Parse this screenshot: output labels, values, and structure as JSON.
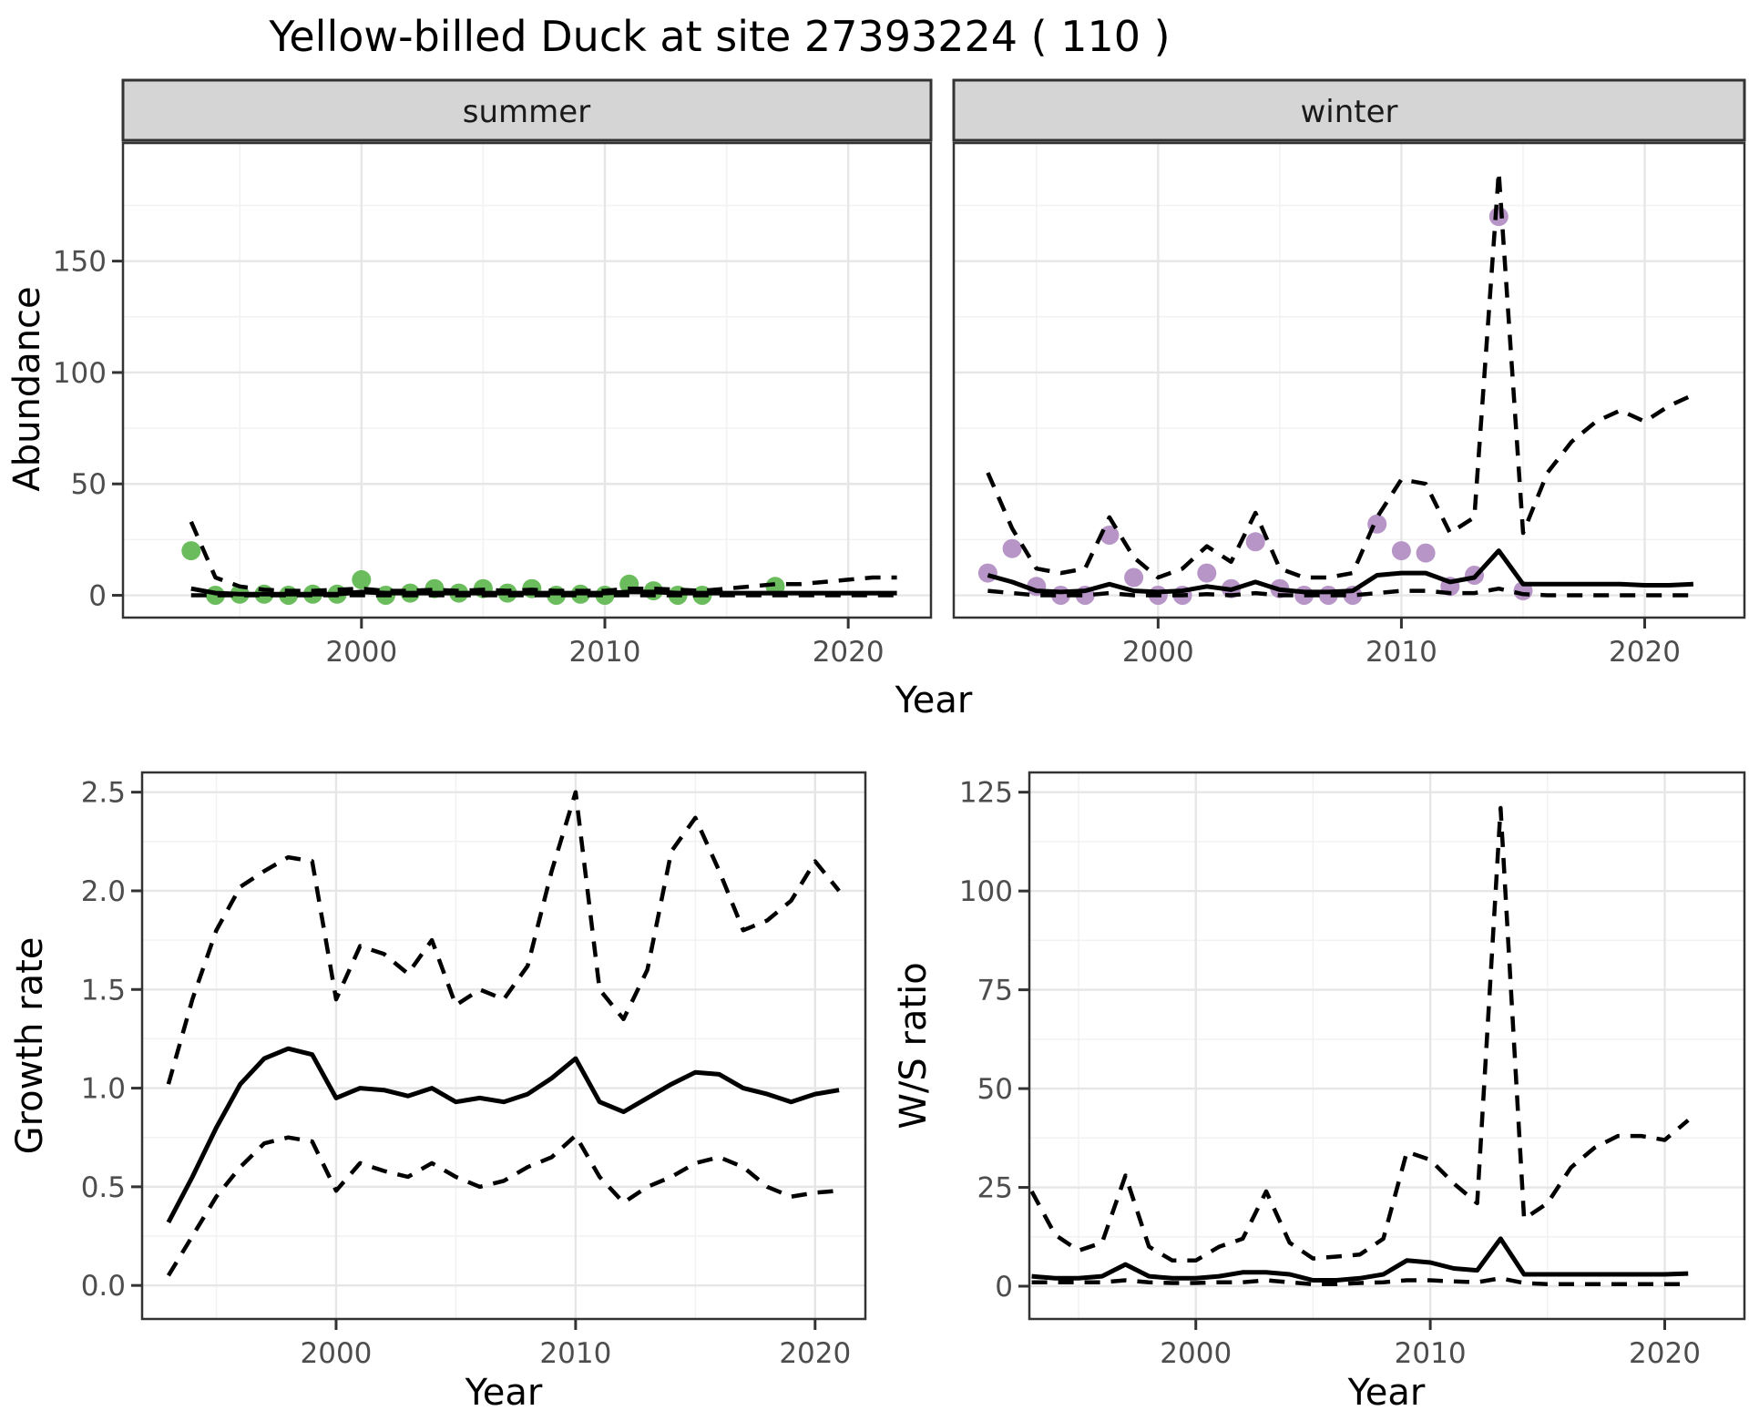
{
  "title": "Yellow-billed Duck at site 27393224 ( 110 )",
  "facets": {
    "summer": "summer",
    "winter": "winter"
  },
  "axes": {
    "abundance_label": "Abundance",
    "year_label": "Year",
    "growth_label": "Growth rate",
    "ws_label": "W/S ratio"
  },
  "colors": {
    "summer_point": "#6abc5c",
    "winter_point": "#b795c7",
    "line": "#000000",
    "strip_bg": "#d5d5d5",
    "panel_border": "#333333",
    "grid_major": "#e6e6e6",
    "grid_minor": "#f2f2f2",
    "tick_text": "#4d4d4d"
  },
  "chart_data": [
    {
      "id": "abundance-summer",
      "type": "line",
      "facet_label": "summer",
      "xlabel": "Year",
      "ylabel": "Abundance",
      "xlim": [
        1990.2,
        2023.4
      ],
      "ylim": [
        -10,
        203
      ],
      "x_ticks": [
        2000,
        2010,
        2020
      ],
      "x_tick_labels": [
        "2000",
        "2010",
        "2020"
      ],
      "y_ticks": [
        0,
        50,
        100,
        150
      ],
      "y_tick_labels": [
        "0",
        "50",
        "100",
        "150"
      ],
      "line_years": [
        1993,
        1994,
        1995,
        1996,
        1997,
        1998,
        1999,
        2000,
        2001,
        2002,
        2003,
        2004,
        2005,
        2006,
        2007,
        2008,
        2009,
        2010,
        2011,
        2012,
        2013,
        2014,
        2015,
        2016,
        2017,
        2018,
        2019,
        2020,
        2021,
        2022
      ],
      "series": [
        {
          "name": "upper-ci",
          "style": "dashed",
          "values": [
            33,
            8,
            4,
            2.5,
            2,
            2,
            2.5,
            3,
            2,
            2,
            2.5,
            2,
            2.5,
            2,
            2.5,
            2,
            2,
            2,
            3,
            3,
            2.5,
            2,
            3,
            4,
            5,
            5,
            6,
            7,
            8,
            8
          ]
        },
        {
          "name": "lower-ci",
          "style": "dashed",
          "values": [
            0,
            0,
            0,
            0,
            0,
            0,
            0,
            0,
            0,
            0,
            0,
            0,
            0,
            0,
            0,
            0,
            0,
            0,
            0,
            0,
            0,
            0,
            0,
            0,
            0,
            0,
            0,
            0,
            0,
            0
          ]
        },
        {
          "name": "median",
          "style": "solid",
          "values": [
            3,
            1,
            0.5,
            0.5,
            0.5,
            0.5,
            0.5,
            1.5,
            1,
            1,
            1,
            1,
            1,
            1,
            1,
            1,
            1,
            1,
            1.5,
            1.5,
            1,
            1,
            1,
            1,
            1,
            1,
            1,
            1,
            1,
            1
          ]
        }
      ],
      "points": {
        "name": "observed-counts-summer",
        "color": "#6abc5c",
        "x": [
          1993,
          1994,
          1995,
          1996,
          1997,
          1998,
          1999,
          2000,
          2001,
          2002,
          2003,
          2004,
          2005,
          2006,
          2007,
          2008,
          2009,
          2010,
          2011,
          2012,
          2013,
          2014,
          2017
        ],
        "y": [
          20,
          0,
          0.5,
          0.5,
          0,
          0.5,
          0.5,
          7,
          0,
          1,
          3,
          1,
          3,
          1,
          3,
          0,
          0.5,
          0,
          5,
          2,
          0,
          0,
          4
        ]
      }
    },
    {
      "id": "abundance-winter",
      "type": "line",
      "facet_label": "winter",
      "xlabel": "Year",
      "ylabel": "Abundance",
      "xlim": [
        1991.6,
        2024.1
      ],
      "ylim": [
        -10,
        203
      ],
      "x_ticks": [
        2000,
        2010,
        2020
      ],
      "x_tick_labels": [
        "2000",
        "2010",
        "2020"
      ],
      "y_ticks": [
        0,
        50,
        100,
        150
      ],
      "y_tick_labels": [
        "0",
        "50",
        "100",
        "150"
      ],
      "line_years": [
        1993,
        1994,
        1995,
        1996,
        1997,
        1998,
        1999,
        2000,
        2001,
        2002,
        2003,
        2004,
        2005,
        2006,
        2007,
        2008,
        2009,
        2010,
        2011,
        2012,
        2013,
        2014,
        2015,
        2016,
        2017,
        2018,
        2019,
        2020,
        2021,
        2022
      ],
      "series": [
        {
          "name": "upper-ci",
          "style": "dashed",
          "values": [
            55,
            30,
            12,
            10,
            12,
            35,
            17,
            8,
            12,
            22,
            15,
            37,
            12,
            8,
            8,
            10,
            35,
            52,
            50,
            28,
            35,
            190,
            28,
            55,
            69,
            78,
            83,
            78,
            85,
            90
          ]
        },
        {
          "name": "lower-ci",
          "style": "dashed",
          "values": [
            2,
            1,
            0,
            0,
            0,
            1,
            0,
            0,
            0,
            0.5,
            0,
            1,
            0,
            0,
            0,
            0,
            1,
            2,
            2,
            1,
            1,
            3,
            0.5,
            0,
            0,
            0,
            0,
            0,
            0,
            0
          ]
        },
        {
          "name": "median",
          "style": "solid",
          "values": [
            9,
            6,
            2,
            1.5,
            2,
            5,
            2,
            1.5,
            2,
            4,
            2.5,
            6,
            2.5,
            1.5,
            1.5,
            2,
            9,
            10,
            10,
            6,
            8,
            20,
            5,
            5,
            5,
            5,
            5,
            4.5,
            4.5,
            5
          ]
        }
      ],
      "points": {
        "name": "observed-counts-winter",
        "color": "#b795c7",
        "x": [
          1993,
          1994,
          1995,
          1996,
          1997,
          1998,
          1999,
          2000,
          2001,
          2002,
          2003,
          2004,
          2005,
          2006,
          2007,
          2008,
          2009,
          2010,
          2011,
          2012,
          2013,
          2014,
          2015
        ],
        "y": [
          10,
          21,
          4,
          0,
          0,
          27,
          8,
          0,
          0,
          10,
          3,
          24,
          3,
          0,
          0,
          0,
          32,
          20,
          19,
          4,
          9,
          170,
          2
        ]
      }
    },
    {
      "id": "growth-rate",
      "type": "line",
      "facet_label": "",
      "xlabel": "Year",
      "ylabel": "Growth rate",
      "xlim": [
        1991.9,
        2022.1
      ],
      "ylim": [
        -0.17,
        2.6
      ],
      "x_ticks": [
        2000,
        2010,
        2020
      ],
      "x_tick_labels": [
        "2000",
        "2010",
        "2020"
      ],
      "y_ticks": [
        0,
        0.5,
        1,
        1.5,
        2,
        2.5
      ],
      "y_tick_labels": [
        "0.0",
        "0.5",
        "1.0",
        "1.5",
        "2.0",
        "2.5"
      ],
      "line_years": [
        1993,
        1994,
        1995,
        1996,
        1997,
        1998,
        1999,
        2000,
        2001,
        2002,
        2003,
        2004,
        2005,
        2006,
        2007,
        2008,
        2009,
        2010,
        2011,
        2012,
        2013,
        2014,
        2015,
        2016,
        2017,
        2018,
        2019,
        2020,
        2021
      ],
      "series": [
        {
          "name": "upper-ci",
          "style": "dashed",
          "values": [
            1.02,
            1.45,
            1.8,
            2.02,
            2.1,
            2.17,
            2.15,
            1.45,
            1.72,
            1.68,
            1.58,
            1.75,
            1.42,
            1.5,
            1.45,
            1.62,
            2.1,
            2.5,
            1.5,
            1.35,
            1.6,
            2.2,
            2.37,
            2.1,
            1.8,
            1.85,
            1.95,
            2.15,
            2.0
          ]
        },
        {
          "name": "lower-ci",
          "style": "dashed",
          "values": [
            0.05,
            0.25,
            0.45,
            0.6,
            0.72,
            0.75,
            0.73,
            0.48,
            0.62,
            0.58,
            0.55,
            0.62,
            0.55,
            0.5,
            0.53,
            0.6,
            0.65,
            0.76,
            0.55,
            0.42,
            0.5,
            0.55,
            0.62,
            0.65,
            0.6,
            0.5,
            0.45,
            0.47,
            0.48
          ]
        },
        {
          "name": "median",
          "style": "solid",
          "values": [
            0.32,
            0.55,
            0.8,
            1.02,
            1.15,
            1.2,
            1.17,
            0.95,
            1.0,
            0.99,
            0.96,
            1.0,
            0.93,
            0.95,
            0.93,
            0.97,
            1.05,
            1.15,
            0.93,
            0.88,
            0.95,
            1.02,
            1.08,
            1.07,
            1.0,
            0.97,
            0.93,
            0.97,
            0.99
          ]
        }
      ],
      "points": null
    },
    {
      "id": "ws-ratio",
      "type": "line",
      "facet_label": "",
      "xlabel": "Year",
      "ylabel": "W/S ratio",
      "xlim": [
        1992.9,
        2023.4
      ],
      "ylim": [
        -8.3,
        130
      ],
      "x_ticks": [
        2000,
        2010,
        2020
      ],
      "x_tick_labels": [
        "2000",
        "2010",
        "2020"
      ],
      "y_ticks": [
        0,
        25,
        50,
        75,
        100,
        125
      ],
      "y_tick_labels": [
        "0",
        "25",
        "50",
        "75",
        "100",
        "125"
      ],
      "line_years": [
        1993,
        1994,
        1995,
        1996,
        1997,
        1998,
        1999,
        2000,
        2001,
        2002,
        2003,
        2004,
        2005,
        2006,
        2007,
        2008,
        2009,
        2010,
        2011,
        2012,
        2013,
        2014,
        2015,
        2016,
        2017,
        2018,
        2019,
        2020,
        2021
      ],
      "series": [
        {
          "name": "upper-ci",
          "style": "dashed",
          "values": [
            24,
            13,
            9,
            11,
            28,
            10,
            6.5,
            6.5,
            10,
            12,
            24,
            11,
            7,
            7.5,
            8,
            12,
            34,
            32,
            26,
            21,
            121,
            17,
            21,
            30,
            35,
            38,
            38,
            37,
            42
          ]
        },
        {
          "name": "lower-ci",
          "style": "dashed",
          "values": [
            1,
            1,
            1,
            1,
            1.5,
            1,
            0.8,
            0.8,
            1,
            1,
            1.5,
            1,
            0.5,
            0.5,
            0.8,
            1,
            1.5,
            1.5,
            1.2,
            1,
            2,
            0.8,
            0.5,
            0.5,
            0.5,
            0.5,
            0.5,
            0.5,
            0.5
          ]
        },
        {
          "name": "median",
          "style": "solid",
          "values": [
            2.5,
            2,
            2,
            2.5,
            5.5,
            2.5,
            2,
            2,
            2.5,
            3.5,
            3.5,
            3,
            1.5,
            1.5,
            2,
            3,
            6.5,
            6,
            4.5,
            4,
            12,
            3,
            3,
            3,
            3,
            3,
            3,
            3,
            3.2
          ]
        }
      ],
      "points": null
    }
  ]
}
